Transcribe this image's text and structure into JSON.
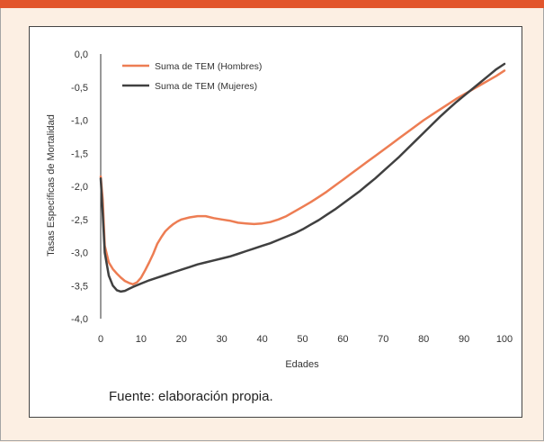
{
  "colors": {
    "accent_bar": "#e2552c",
    "background": "#fcefe3",
    "hombres": "#ed7d53",
    "mujeres": "#404040"
  },
  "source_text": "Fuente: elaboración propia.",
  "chart_data": {
    "type": "line",
    "xlabel": "Edades",
    "ylabel": "Tasas Específicas de Mortalidad",
    "xlim": [
      0,
      100
    ],
    "ylim": [
      -4.0,
      0.0
    ],
    "x_ticks": [
      0,
      10,
      20,
      30,
      40,
      50,
      60,
      70,
      80,
      90,
      100
    ],
    "y_ticks": [
      0.0,
      -0.5,
      -1.0,
      -1.5,
      -2.0,
      -2.5,
      -3.0,
      -3.5,
      -4.0
    ],
    "x_tick_labels": [
      "0",
      "10",
      "20",
      "30",
      "40",
      "50",
      "60",
      "70",
      "80",
      "90",
      "100"
    ],
    "y_tick_labels": [
      "0,0",
      "-0,5",
      "-1,0",
      "-1,5",
      "-2,0",
      "-2,5",
      "-3,0",
      "-3,5",
      "-4,0"
    ],
    "grid": false,
    "legend_position": "top-left",
    "series": [
      {
        "name": "Suma de TEM (Hombres)",
        "color": "#ed7d53",
        "x": [
          0,
          0.5,
          1,
          2,
          3,
          4,
          5,
          6,
          7,
          8,
          9,
          10,
          11,
          12,
          13,
          14,
          15,
          16,
          17,
          18,
          19,
          20,
          22,
          24,
          26,
          28,
          30,
          32,
          34,
          36,
          38,
          40,
          42,
          44,
          46,
          48,
          50,
          52,
          54,
          56,
          58,
          60,
          62,
          64,
          66,
          68,
          70,
          72,
          74,
          76,
          78,
          80,
          82,
          84,
          86,
          88,
          90,
          92,
          94,
          96,
          98,
          100
        ],
        "y": [
          -1.85,
          -2.2,
          -2.9,
          -3.15,
          -3.25,
          -3.32,
          -3.38,
          -3.43,
          -3.46,
          -3.48,
          -3.45,
          -3.38,
          -3.27,
          -3.15,
          -3.02,
          -2.87,
          -2.77,
          -2.68,
          -2.62,
          -2.57,
          -2.53,
          -2.5,
          -2.47,
          -2.45,
          -2.45,
          -2.48,
          -2.5,
          -2.52,
          -2.55,
          -2.56,
          -2.57,
          -2.56,
          -2.54,
          -2.5,
          -2.45,
          -2.38,
          -2.31,
          -2.24,
          -2.16,
          -2.08,
          -1.99,
          -1.9,
          -1.81,
          -1.72,
          -1.63,
          -1.54,
          -1.45,
          -1.36,
          -1.27,
          -1.18,
          -1.09,
          -1.0,
          -0.92,
          -0.84,
          -0.76,
          -0.68,
          -0.61,
          -0.54,
          -0.47,
          -0.4,
          -0.33,
          -0.25
        ]
      },
      {
        "name": "Suma de TEM (Mujeres)",
        "color": "#404040",
        "x": [
          0,
          0.5,
          1,
          2,
          3,
          4,
          5,
          6,
          7,
          8,
          10,
          12,
          14,
          16,
          18,
          20,
          22,
          24,
          26,
          28,
          30,
          32,
          34,
          36,
          38,
          40,
          42,
          44,
          46,
          48,
          50,
          52,
          54,
          56,
          58,
          60,
          62,
          64,
          66,
          68,
          70,
          72,
          74,
          76,
          78,
          80,
          82,
          84,
          86,
          88,
          90,
          92,
          94,
          96,
          98,
          100
        ],
        "y": [
          -1.88,
          -2.4,
          -3.0,
          -3.35,
          -3.5,
          -3.57,
          -3.59,
          -3.58,
          -3.55,
          -3.52,
          -3.47,
          -3.42,
          -3.38,
          -3.34,
          -3.3,
          -3.26,
          -3.22,
          -3.18,
          -3.15,
          -3.12,
          -3.09,
          -3.06,
          -3.02,
          -2.98,
          -2.94,
          -2.9,
          -2.86,
          -2.81,
          -2.76,
          -2.71,
          -2.65,
          -2.58,
          -2.51,
          -2.43,
          -2.35,
          -2.26,
          -2.17,
          -2.08,
          -1.98,
          -1.88,
          -1.77,
          -1.66,
          -1.55,
          -1.43,
          -1.31,
          -1.19,
          -1.07,
          -0.95,
          -0.84,
          -0.73,
          -0.63,
          -0.53,
          -0.43,
          -0.33,
          -0.23,
          -0.15
        ]
      }
    ]
  }
}
